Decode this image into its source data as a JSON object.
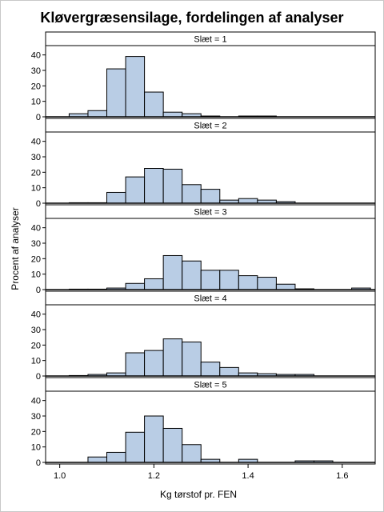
{
  "chart_data": {
    "type": "bar",
    "title": "Kløvergræsensilage, fordelingen af analyser",
    "xlabel": "Kg tørstof pr. FEN",
    "ylabel": "Procent af analyser",
    "xlim": [
      0.97,
      1.67
    ],
    "ylim": [
      0,
      45
    ],
    "x_ticks": [
      1.0,
      1.2,
      1.4,
      1.6
    ],
    "x_tick_labels": [
      "1.0",
      "1.2",
      "1.4",
      "1.6"
    ],
    "y_ticks": [
      0,
      10,
      20,
      30,
      40
    ],
    "y_tick_labels": [
      "0",
      "10",
      "20",
      "30",
      "40"
    ],
    "bin_width": 0.04,
    "bin_starts": [
      1.02,
      1.06,
      1.1,
      1.14,
      1.18,
      1.22,
      1.26,
      1.3,
      1.34,
      1.38,
      1.42,
      1.46,
      1.5,
      1.54,
      1.58,
      1.62
    ],
    "panels": [
      {
        "label": "Slæt = 1",
        "values": [
          2,
          4,
          31,
          39,
          16,
          3,
          2,
          0.5,
          0,
          0.5,
          0.5,
          0,
          0,
          0,
          0,
          0
        ]
      },
      {
        "label": "Slæt = 2",
        "values": [
          0.3,
          0.3,
          7,
          17,
          22.5,
          22,
          12,
          9,
          2,
          3,
          2,
          1,
          0,
          0,
          0,
          0
        ]
      },
      {
        "label": "Slæt = 3",
        "values": [
          0.3,
          0.3,
          1,
          4,
          7,
          22,
          18.5,
          12.5,
          12.5,
          9,
          8,
          3.5,
          0.5,
          0,
          0,
          1
        ]
      },
      {
        "label": "Slæt = 4",
        "values": [
          0.3,
          1,
          2,
          15,
          16.5,
          24,
          22,
          9,
          5.5,
          2,
          1.5,
          1,
          1,
          0,
          0,
          0
        ]
      },
      {
        "label": "Slæt = 5",
        "values": [
          0,
          3.5,
          6.5,
          19.5,
          30,
          22,
          11.5,
          2,
          0,
          2,
          0,
          0,
          1,
          1,
          0,
          0
        ]
      }
    ]
  }
}
